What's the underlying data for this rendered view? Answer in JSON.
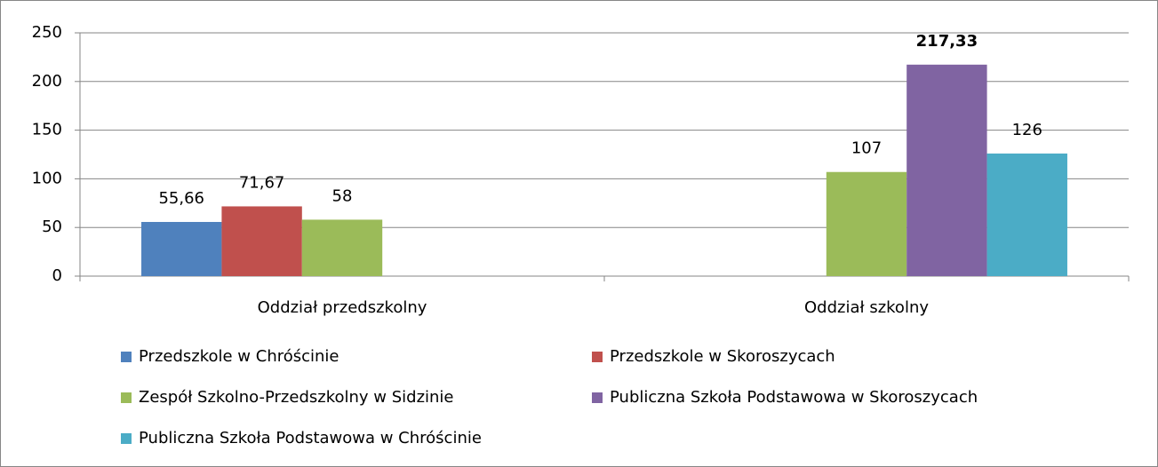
{
  "chart_data": {
    "type": "bar",
    "categories": [
      "Oddział przedszkolny",
      "Oddział szkolny"
    ],
    "series": [
      {
        "name": "Przedszkole w Chróścinie",
        "color": "#4f81bd",
        "values": [
          55.66,
          null
        ],
        "value_labels": [
          "55,66",
          null
        ]
      },
      {
        "name": "Przedszkole w Skoroszycach",
        "color": "#c0504d",
        "values": [
          71.67,
          null
        ],
        "value_labels": [
          "71,67",
          null
        ]
      },
      {
        "name": "Zespół Szkolno-Przedszkolny w Sidzinie",
        "color": "#9bbb59",
        "values": [
          58,
          107
        ]
      },
      {
        "name": "Publiczna Szkoła Podstawowa w Skoroszycach",
        "color": "#8064a2",
        "values": [
          null,
          217.33
        ],
        "value_labels": [
          null,
          "217,33"
        ],
        "bold_labels": true
      },
      {
        "name": "Publiczna Szkoła Podstawowa w Chróścinie",
        "color": "#4bacc6",
        "values": [
          null,
          126
        ]
      }
    ],
    "ylim": [
      0,
      250
    ],
    "yticks": [
      0,
      50,
      100,
      150,
      200,
      250
    ],
    "grid": true
  }
}
